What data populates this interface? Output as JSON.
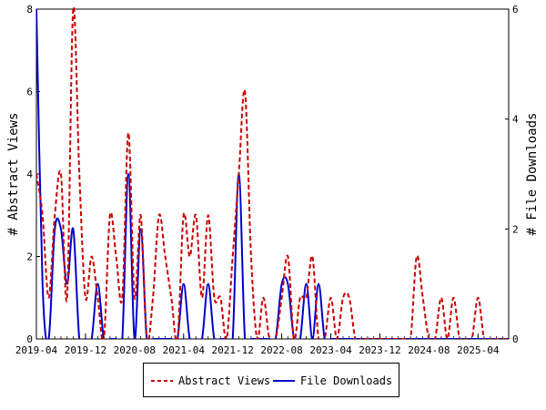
{
  "chart_data": {
    "type": "line",
    "ylabel_left": "# Abstract Views",
    "ylabel_right": "# File Downloads",
    "xticks": [
      "2019-04",
      "2019-12",
      "2020-08",
      "2021-04",
      "2021-12",
      "2022-08",
      "2023-04",
      "2023-12",
      "2024-08",
      "2025-04"
    ],
    "xtick_month_index": [
      0,
      8,
      16,
      24,
      32,
      40,
      48,
      56,
      64,
      72
    ],
    "x_month_range": [
      0,
      77
    ],
    "ylim_left": [
      0,
      8
    ],
    "yticks_left": [
      0,
      2,
      4,
      6,
      8
    ],
    "ylim_right": [
      0,
      6
    ],
    "yticks_right": [
      0,
      2,
      4,
      6
    ],
    "grid": false,
    "legend_position": "bottom",
    "series": [
      {
        "name": "Abstract Views",
        "axis": "left",
        "color": "#cc0000",
        "style": "dashed",
        "values": [
          4,
          3,
          1,
          3,
          4,
          1,
          8,
          4,
          1,
          2,
          1,
          0,
          3,
          2,
          1,
          5,
          1,
          3,
          0,
          1,
          3,
          2,
          1,
          0,
          3,
          2,
          3,
          1,
          3,
          1,
          1,
          0,
          2,
          4,
          6,
          2,
          0,
          1,
          0,
          0,
          1,
          2,
          0,
          1,
          1,
          2,
          0,
          0,
          1,
          0,
          1,
          1,
          0,
          0,
          0,
          0,
          0,
          0,
          0,
          0,
          0,
          0,
          2,
          1,
          0,
          0,
          1,
          0,
          1,
          0,
          0,
          0,
          1,
          0,
          0,
          0,
          0,
          0
        ]
      },
      {
        "name": "File Downloads",
        "axis": "right",
        "color": "#0000cc",
        "style": "solid",
        "values": [
          6,
          1,
          0,
          2,
          2,
          1,
          2,
          0,
          0,
          0,
          1,
          0,
          0,
          0,
          0,
          3,
          0,
          2,
          0,
          0,
          0,
          0,
          0,
          0,
          1,
          0,
          0,
          0,
          1,
          0,
          0,
          0,
          0,
          3,
          0,
          0,
          0,
          0,
          0,
          0,
          1,
          1,
          0,
          0,
          1,
          0,
          1,
          0,
          0,
          0,
          0,
          0,
          0,
          0,
          0,
          0,
          0,
          0,
          0,
          0,
          0,
          0,
          0,
          0,
          0,
          0,
          0,
          0,
          0,
          0,
          0,
          0,
          0,
          0,
          0,
          0,
          0,
          0
        ]
      }
    ]
  }
}
